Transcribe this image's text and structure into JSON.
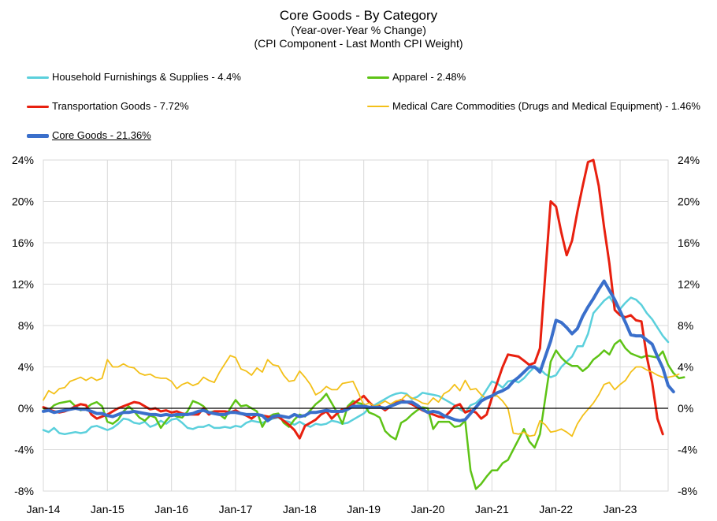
{
  "titles": {
    "title": "Core Goods - By Category",
    "subtitle1": "(Year-over-Year % Change)",
    "subtitle2": "(CPI Component - Last Month CPI Weight)"
  },
  "colors": {
    "household": "#5bd0dc",
    "apparel": "#5ec316",
    "transport": "#e8200f",
    "medical": "#f3c019",
    "core": "#3a6fcb",
    "grid": "#d9d9d9",
    "zero": "#000000"
  },
  "chart_data": {
    "type": "line",
    "title": "Core Goods - By Category",
    "subtitle": "(Year-over-Year % Change) (CPI Component - Last Month CPI Weight)",
    "ylim": [
      -8,
      24
    ],
    "y_ticks": [
      "-8%",
      "-4%",
      "0%",
      "4%",
      "8%",
      "12%",
      "16%",
      "20%",
      "24%"
    ],
    "x_ticks": [
      "Jan-14",
      "Jan-15",
      "Jan-16",
      "Jan-17",
      "Jan-18",
      "Jan-19",
      "Jan-20",
      "Jan-21",
      "Jan-22",
      "Jan-23"
    ],
    "x_start": "2014-01",
    "x_end": "2023-01",
    "grid": true,
    "secondary_y_axis": true,
    "legend_position": "top",
    "series": [
      {
        "name": "Household Furnishings & Supplies - 4.4%",
        "key": "household",
        "width": 2.5,
        "values": [
          -2.1,
          -2.3,
          -1.9,
          -2.4,
          -2.5,
          -2.4,
          -2.3,
          -2.4,
          -2.3,
          -1.8,
          -1.7,
          -1.9,
          -2.1,
          -1.9,
          -1.5,
          -1.0,
          -1.1,
          -1.4,
          -1.5,
          -1.3,
          -1.8,
          -1.6,
          -1.2,
          -1.5,
          -1.1,
          -1.0,
          -1.4,
          -1.9,
          -2.0,
          -1.8,
          -1.8,
          -1.6,
          -1.9,
          -1.9,
          -1.8,
          -1.9,
          -1.7,
          -1.8,
          -1.4,
          -1.2,
          -1.3,
          -1.4,
          -1.2,
          -1.0,
          -0.9,
          -1.2,
          -1.3,
          -1.6,
          -1.3,
          -1.6,
          -1.8,
          -1.5,
          -1.6,
          -1.5,
          -1.2,
          -1.3,
          -1.5,
          -1.4,
          -1.1,
          -0.8,
          -0.5,
          0.0,
          0.3,
          0.6,
          0.9,
          1.2,
          1.4,
          1.5,
          1.4,
          0.9,
          1.1,
          1.5,
          1.4,
          1.3,
          1.2,
          0.9,
          0.6,
          0.3,
          -0.1,
          -0.4,
          0.3,
          0.5,
          1.0,
          1.8,
          2.6,
          2.4,
          2.0,
          2.6,
          2.7,
          2.5,
          2.9,
          3.5,
          4.0,
          3.8,
          3.3,
          3.0,
          3.2,
          4.0,
          4.5,
          5.0,
          6.0,
          6.0,
          7.2,
          9.2,
          9.8,
          10.4,
          10.8,
          10.0,
          9.6,
          10.2,
          10.7,
          10.5,
          10.0,
          9.2,
          8.6,
          7.8,
          7.0,
          6.4
        ]
      },
      {
        "name": "Apparel - 2.48%",
        "key": "apparel",
        "width": 2.5,
        "values": [
          0.0,
          -0.2,
          0.3,
          0.5,
          0.6,
          0.7,
          0.2,
          -0.2,
          0.0,
          0.4,
          0.6,
          0.2,
          -1.3,
          -1.5,
          -1.1,
          -0.3,
          0.2,
          -0.3,
          -0.9,
          -1.2,
          -0.7,
          -0.9,
          -1.9,
          -1.2,
          -0.6,
          -0.8,
          -0.9,
          -0.3,
          0.7,
          0.5,
          0.2,
          -0.4,
          -0.3,
          -0.6,
          -1.0,
          0.0,
          0.8,
          0.2,
          0.3,
          0.0,
          -0.3,
          -1.8,
          -0.9,
          -0.6,
          -0.5,
          -1.4,
          -1.8,
          -1.1,
          -0.6,
          -0.8,
          -0.2,
          0.4,
          0.8,
          1.4,
          0.5,
          -0.4,
          -1.5,
          0.2,
          0.7,
          0.5,
          0.4,
          -0.4,
          -0.6,
          -0.9,
          -2.2,
          -2.7,
          -3.0,
          -1.4,
          -1.1,
          -0.6,
          -0.2,
          0.1,
          0.0,
          -2.0,
          -1.3,
          -1.3,
          -1.3,
          -1.8,
          -1.7,
          -1.2,
          -6.0,
          -7.8,
          -7.3,
          -6.6,
          -6.0,
          -6.0,
          -5.3,
          -5.0,
          -4.0,
          -3.0,
          -2.0,
          -3.2,
          -3.8,
          -2.5,
          1.0,
          4.5,
          5.6,
          4.9,
          4.4,
          4.1,
          4.1,
          3.6,
          4.0,
          4.7,
          5.1,
          5.6,
          5.2,
          6.2,
          6.6,
          5.8,
          5.3,
          5.1,
          4.9,
          5.1,
          5.0,
          4.9,
          5.5,
          4.2,
          3.4,
          2.9,
          3.0
        ]
      },
      {
        "name": "Transportation Goods - 7.72%",
        "key": "transport",
        "width": 3,
        "values": [
          0.1,
          -0.1,
          -0.3,
          -0.4,
          -0.3,
          -0.1,
          0.2,
          0.4,
          0.3,
          -0.6,
          -1.0,
          -0.8,
          -0.6,
          -0.3,
          0.0,
          0.2,
          0.4,
          0.6,
          0.5,
          0.2,
          -0.1,
          0.0,
          -0.3,
          -0.2,
          -0.4,
          -0.3,
          -0.5,
          -0.6,
          -0.6,
          -0.6,
          0.0,
          -0.6,
          -0.3,
          -0.3,
          -0.3,
          -0.4,
          -0.2,
          -0.5,
          -0.7,
          -1.0,
          -0.6,
          -0.7,
          -0.8,
          -0.9,
          -0.8,
          -1.2,
          -1.6,
          -2.1,
          -2.9,
          -1.7,
          -1.4,
          -1.1,
          -0.6,
          -0.3,
          -1.0,
          -0.5,
          -0.1,
          0.0,
          0.4,
          0.8,
          1.2,
          0.6,
          0.1,
          0.2,
          -0.2,
          0.2,
          0.6,
          0.8,
          0.6,
          0.4,
          0.1,
          -0.2,
          -0.4,
          -0.6,
          -0.8,
          -0.9,
          -0.4,
          0.2,
          0.4,
          -0.4,
          -0.2,
          -0.4,
          -1.0,
          -0.6,
          1.0,
          2.5,
          4.0,
          5.2,
          5.1,
          5.0,
          4.6,
          4.2,
          4.4,
          5.8,
          13.0,
          20.0,
          19.5,
          17.0,
          14.8,
          16.2,
          19.0,
          21.5,
          23.8,
          24.0,
          21.5,
          17.5,
          14.0,
          9.5,
          9.0,
          8.8,
          9.0,
          8.5,
          8.4,
          5.0,
          2.5,
          -1.0,
          -2.5
        ]
      },
      {
        "name": "Medical Care Commodities (Drugs and Medical Equipment) - 1.46%",
        "key": "medical",
        "width": 1.8,
        "values": [
          0.8,
          1.7,
          1.4,
          1.9,
          2.0,
          2.6,
          2.8,
          3.0,
          2.7,
          3.0,
          2.7,
          2.9,
          4.7,
          4.0,
          4.0,
          4.3,
          4.0,
          3.9,
          3.4,
          3.2,
          3.3,
          3.0,
          2.9,
          2.9,
          2.6,
          1.9,
          2.3,
          2.5,
          2.2,
          2.4,
          3.0,
          2.7,
          2.5,
          3.5,
          4.3,
          5.1,
          4.9,
          3.8,
          3.6,
          3.2,
          3.9,
          3.5,
          4.7,
          4.2,
          4.1,
          3.2,
          2.6,
          2.7,
          3.6,
          3.0,
          2.3,
          1.3,
          1.6,
          2.1,
          1.8,
          1.8,
          2.4,
          2.5,
          2.6,
          1.5,
          0.3,
          0.5,
          0.2,
          0.4,
          0.7,
          0.4,
          0.7,
          0.8,
          1.3,
          1.0,
          0.8,
          0.5,
          0.4,
          1.0,
          0.6,
          1.4,
          1.7,
          2.3,
          1.7,
          2.7,
          1.8,
          1.9,
          1.3,
          0.9,
          1.2,
          1.2,
          0.7,
          0.0,
          -2.4,
          -2.5,
          -2.3,
          -2.7,
          -2.6,
          -1.2,
          -1.6,
          -2.3,
          -2.2,
          -2.0,
          -2.3,
          -2.7,
          -1.5,
          -0.7,
          -0.1,
          0.5,
          1.3,
          2.3,
          2.5,
          1.8,
          2.3,
          2.7,
          3.5,
          4.0,
          4.0,
          3.7,
          3.5,
          3.2,
          3.0,
          3.0,
          3.1,
          3.3
        ]
      },
      {
        "name": "Core Goods - 21.36%",
        "key": "core",
        "width": 4,
        "underline": true,
        "values": [
          -0.3,
          -0.2,
          -0.4,
          -0.3,
          -0.2,
          -0.1,
          0.0,
          -0.1,
          -0.1,
          -0.3,
          -0.5,
          -0.5,
          -0.7,
          -0.8,
          -0.6,
          -0.4,
          -0.4,
          -0.3,
          -0.4,
          -0.5,
          -0.6,
          -0.6,
          -0.7,
          -0.6,
          -0.7,
          -0.6,
          -0.6,
          -0.6,
          -0.5,
          -0.3,
          -0.2,
          -0.4,
          -0.5,
          -0.6,
          -0.6,
          -0.4,
          -0.4,
          -0.5,
          -0.6,
          -0.6,
          -0.6,
          -0.7,
          -1.2,
          -0.8,
          -0.7,
          -0.8,
          -0.9,
          -0.6,
          -0.8,
          -0.7,
          -0.4,
          -0.4,
          -0.3,
          -0.2,
          -0.3,
          -0.3,
          -0.3,
          -0.1,
          0.2,
          0.2,
          0.2,
          0.1,
          0.1,
          0.1,
          0.0,
          0.2,
          0.4,
          0.6,
          0.6,
          0.6,
          0.3,
          -0.1,
          -0.4,
          -0.3,
          -0.4,
          -0.7,
          -0.9,
          -1.1,
          -1.2,
          -1.1,
          -0.5,
          0.1,
          0.7,
          1.0,
          1.2,
          1.5,
          1.7,
          2.0,
          2.6,
          3.0,
          3.5,
          4.0,
          4.0,
          3.5,
          5.0,
          6.5,
          8.5,
          8.3,
          7.8,
          7.2,
          7.7,
          8.9,
          9.8,
          10.6,
          11.5,
          12.3,
          11.4,
          10.5,
          9.4,
          8.3,
          7.1,
          7.0,
          7.0,
          6.6,
          6.2,
          5.0,
          3.9,
          2.2,
          1.6
        ]
      }
    ]
  }
}
